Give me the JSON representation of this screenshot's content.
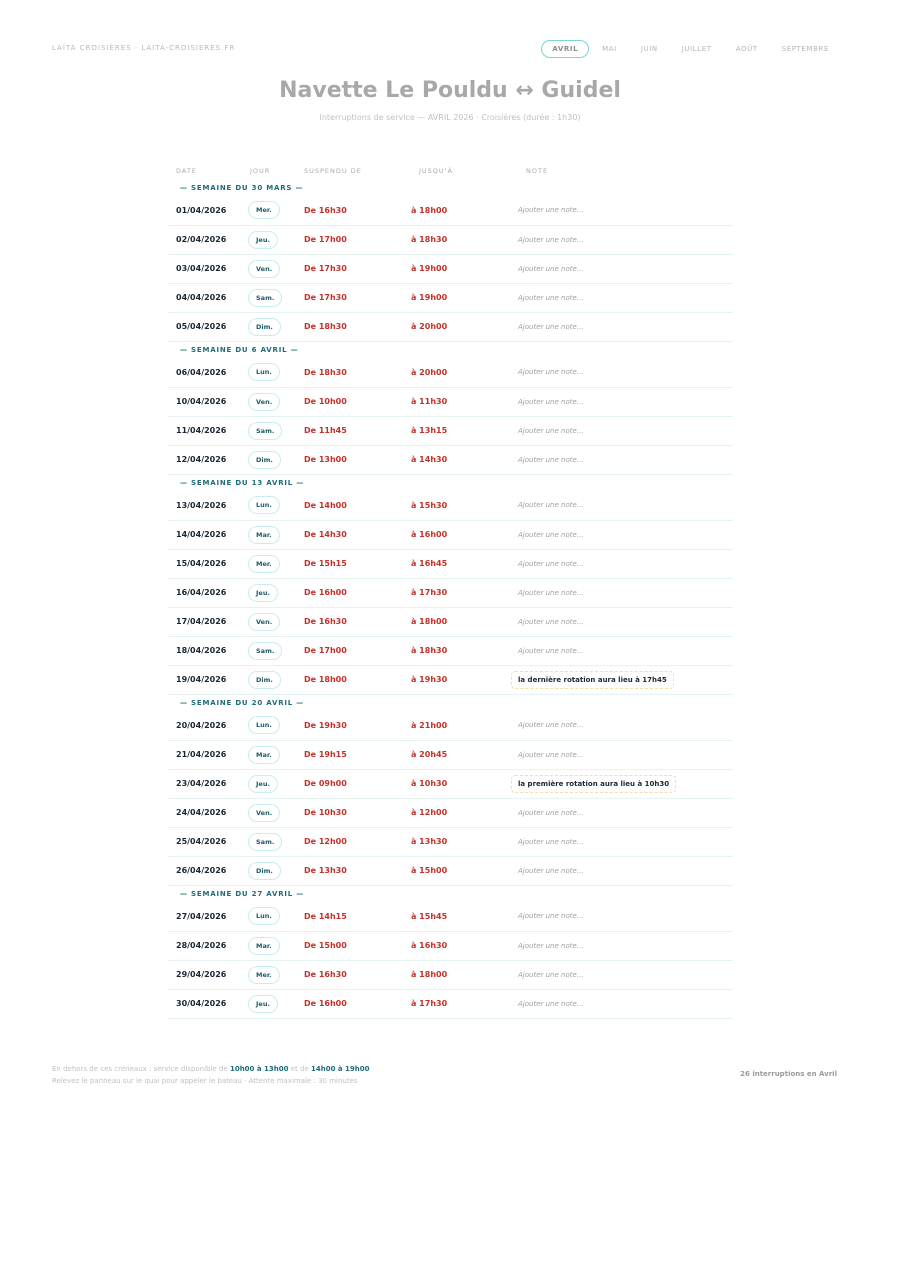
{
  "brand": "LAÏTA CROISIÈRES · LAITA-CROISIERES.FR",
  "months": [
    {
      "label": "AVRIL",
      "active": true
    },
    {
      "label": "MAI"
    },
    {
      "label": "JUIN"
    },
    {
      "label": "JUILLET"
    },
    {
      "label": "AOÛT"
    },
    {
      "label": "SEPTEMBRE"
    }
  ],
  "title": "Navette Le Pouldu ↔ Guidel",
  "subtitle": "Interruptions de service — AVRIL 2026  ·  Croisières (durée : 1h30)",
  "columns": {
    "date": "DATE",
    "jour": "JOUR",
    "from": "SUSPENDU DE",
    "to": "JUSQU'À",
    "note": "NOTE"
  },
  "note_placeholder": "Ajouter une note...",
  "weeks": [
    {
      "label": "— SEMAINE DU 30 MARS —",
      "rows": [
        {
          "date": "01/04/2026",
          "day": "Mer.",
          "from": "De 16h30",
          "to": "à 18h00"
        },
        {
          "date": "02/04/2026",
          "day": "Jeu.",
          "from": "De 17h00",
          "to": "à 18h30"
        },
        {
          "date": "03/04/2026",
          "day": "Ven.",
          "from": "De 17h30",
          "to": "à 19h00"
        },
        {
          "date": "04/04/2026",
          "day": "Sam.",
          "from": "De 17h30",
          "to": "à 19h00"
        },
        {
          "date": "05/04/2026",
          "day": "Dim.",
          "from": "De 18h30",
          "to": "à 20h00"
        }
      ]
    },
    {
      "label": "— SEMAINE DU 6 AVRIL —",
      "rows": [
        {
          "date": "06/04/2026",
          "day": "Lun.",
          "from": "De 18h30",
          "to": "à 20h00"
        },
        {
          "date": "10/04/2026",
          "day": "Ven.",
          "from": "De 10h00",
          "to": "à 11h30"
        },
        {
          "date": "11/04/2026",
          "day": "Sam.",
          "from": "De 11h45",
          "to": "à 13h15"
        },
        {
          "date": "12/04/2026",
          "day": "Dim.",
          "from": "De 13h00",
          "to": "à 14h30"
        }
      ]
    },
    {
      "label": "— SEMAINE DU 13 AVRIL —",
      "rows": [
        {
          "date": "13/04/2026",
          "day": "Lun.",
          "from": "De 14h00",
          "to": "à 15h30"
        },
        {
          "date": "14/04/2026",
          "day": "Mar.",
          "from": "De 14h30",
          "to": "à 16h00"
        },
        {
          "date": "15/04/2026",
          "day": "Mer.",
          "from": "De 15h15",
          "to": "à 16h45"
        },
        {
          "date": "16/04/2026",
          "day": "Jeu.",
          "from": "De 16h00",
          "to": "à 17h30"
        },
        {
          "date": "17/04/2026",
          "day": "Ven.",
          "from": "De 16h30",
          "to": "à 18h00"
        },
        {
          "date": "18/04/2026",
          "day": "Sam.",
          "from": "De 17h00",
          "to": "à 18h30"
        },
        {
          "date": "19/04/2026",
          "day": "Dim.",
          "from": "De 18h00",
          "to": "à 19h30",
          "note": "la dernière rotation aura lieu à 17h45"
        }
      ]
    },
    {
      "label": "— SEMAINE DU 20 AVRIL —",
      "rows": [
        {
          "date": "20/04/2026",
          "day": "Lun.",
          "from": "De 19h30",
          "to": "à 21h00"
        },
        {
          "date": "21/04/2026",
          "day": "Mar.",
          "from": "De 19h15",
          "to": "à 20h45"
        },
        {
          "date": "23/04/2026",
          "day": "Jeu.",
          "from": "De 09h00",
          "to": "à 10h30",
          "note": "la première rotation aura lieu à 10h30"
        },
        {
          "date": "24/04/2026",
          "day": "Ven.",
          "from": "De 10h30",
          "to": "à 12h00"
        },
        {
          "date": "25/04/2026",
          "day": "Sam.",
          "from": "De 12h00",
          "to": "à 13h30"
        },
        {
          "date": "26/04/2026",
          "day": "Dim.",
          "from": "De 13h30",
          "to": "à 15h00"
        }
      ]
    },
    {
      "label": "— SEMAINE DU 27 AVRIL —",
      "rows": [
        {
          "date": "27/04/2026",
          "day": "Lun.",
          "from": "De 14h15",
          "to": "à 15h45"
        },
        {
          "date": "28/04/2026",
          "day": "Mar.",
          "from": "De 15h00",
          "to": "à 16h30"
        },
        {
          "date": "29/04/2026",
          "day": "Mer.",
          "from": "De 16h30",
          "to": "à 18h00"
        },
        {
          "date": "30/04/2026",
          "day": "Jeu.",
          "from": "De 16h00",
          "to": "à 17h30"
        }
      ]
    }
  ],
  "footer": {
    "line1_prefix": "En dehors de ces créneaux : service disponible de ",
    "slot1": "10h00 à 13h00",
    "line1_mid": " et de ",
    "slot2": "14h00 à 19h00",
    "line2": "Relevez le panneau sur le quai pour appeler le bateau · Attente maximale : 30 minutes",
    "count": "26 interruptions en Avril"
  },
  "colors": {
    "accent": "#1f6b7a",
    "alert": "#c0322b",
    "pill_border": "#c8ecef"
  }
}
